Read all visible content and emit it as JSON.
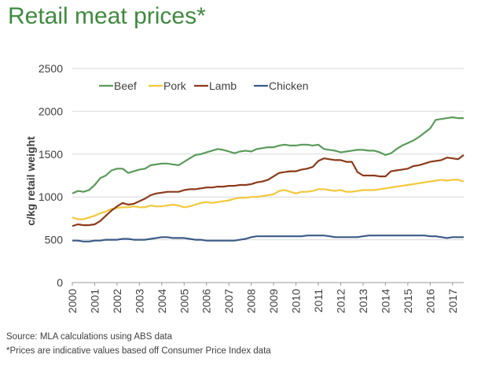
{
  "title": "Retail meat prices*",
  "notes": {
    "source": "Source: MLA calculations using ABS data",
    "footnote": "*Prices are indicative values based off Consumer Price Index data"
  },
  "chart_data": {
    "type": "line",
    "ylabel": "c/kg retail weight",
    "xlabel": "",
    "ylim": [
      0,
      2500
    ],
    "xlim": [
      2000,
      2017.5
    ],
    "yticks": [
      0,
      500,
      1000,
      1500,
      2000,
      2500
    ],
    "xticks": [
      "2000",
      "2001",
      "2002",
      "2003",
      "2004",
      "2005",
      "2006",
      "2007",
      "2008",
      "2009",
      "2010",
      "2011",
      "2012",
      "2013",
      "2014",
      "2015",
      "2016",
      "2017"
    ],
    "grid": "horizontal",
    "legend": "top-left",
    "x": [
      2000,
      2000.25,
      2000.5,
      2000.75,
      2001,
      2001.25,
      2001.5,
      2001.75,
      2002,
      2002.25,
      2002.5,
      2002.75,
      2003,
      2003.25,
      2003.5,
      2003.75,
      2004,
      2004.25,
      2004.5,
      2004.75,
      2005,
      2005.25,
      2005.5,
      2005.75,
      2006,
      2006.25,
      2006.5,
      2006.75,
      2007,
      2007.25,
      2007.5,
      2007.75,
      2008,
      2008.25,
      2008.5,
      2008.75,
      2009,
      2009.25,
      2009.5,
      2009.75,
      2010,
      2010.25,
      2010.5,
      2010.75,
      2011,
      2011.25,
      2011.5,
      2011.75,
      2012,
      2012.25,
      2012.5,
      2012.75,
      2013,
      2013.25,
      2013.5,
      2013.75,
      2014,
      2014.25,
      2014.5,
      2014.75,
      2015,
      2015.25,
      2015.5,
      2015.75,
      2016,
      2016.25,
      2016.5,
      2016.75,
      2017,
      2017.25,
      2017.5
    ],
    "series": [
      {
        "name": "Beef",
        "color": "#5a9a5a",
        "values": [
          1040,
          1070,
          1060,
          1080,
          1140,
          1220,
          1250,
          1310,
          1330,
          1330,
          1280,
          1300,
          1320,
          1330,
          1370,
          1380,
          1390,
          1390,
          1380,
          1370,
          1410,
          1450,
          1490,
          1500,
          1520,
          1540,
          1560,
          1550,
          1530,
          1510,
          1530,
          1540,
          1530,
          1560,
          1570,
          1580,
          1580,
          1600,
          1610,
          1600,
          1600,
          1610,
          1610,
          1600,
          1610,
          1560,
          1550,
          1540,
          1520,
          1530,
          1540,
          1550,
          1550,
          1540,
          1540,
          1520,
          1490,
          1510,
          1560,
          1600,
          1630,
          1660,
          1700,
          1750,
          1800,
          1900,
          1910,
          1920,
          1930,
          1920,
          1920
        ]
      },
      {
        "name": "Pork",
        "color": "#f2c83a",
        "values": [
          760,
          740,
          740,
          760,
          780,
          810,
          830,
          860,
          870,
          880,
          880,
          890,
          880,
          880,
          900,
          890,
          890,
          900,
          910,
          900,
          880,
          890,
          910,
          930,
          940,
          930,
          940,
          950,
          960,
          980,
          990,
          990,
          1000,
          1000,
          1010,
          1020,
          1030,
          1070,
          1080,
          1060,
          1040,
          1060,
          1060,
          1070,
          1090,
          1090,
          1080,
          1070,
          1080,
          1060,
          1060,
          1070,
          1080,
          1080,
          1080,
          1090,
          1100,
          1110,
          1120,
          1130,
          1140,
          1150,
          1160,
          1170,
          1180,
          1190,
          1200,
          1190,
          1200,
          1200,
          1180
        ]
      },
      {
        "name": "Lamb",
        "color": "#8b3a1a",
        "values": [
          660,
          680,
          670,
          670,
          680,
          720,
          780,
          840,
          890,
          930,
          910,
          920,
          950,
          980,
          1020,
          1040,
          1050,
          1060,
          1060,
          1060,
          1080,
          1090,
          1090,
          1100,
          1110,
          1110,
          1120,
          1120,
          1130,
          1130,
          1140,
          1140,
          1150,
          1170,
          1180,
          1200,
          1240,
          1280,
          1290,
          1300,
          1300,
          1320,
          1330,
          1350,
          1420,
          1450,
          1440,
          1430,
          1430,
          1410,
          1410,
          1290,
          1250,
          1250,
          1250,
          1240,
          1240,
          1300,
          1310,
          1320,
          1330,
          1360,
          1370,
          1390,
          1410,
          1420,
          1430,
          1460,
          1450,
          1440,
          1490
        ]
      },
      {
        "name": "Chicken",
        "color": "#3b5a86",
        "values": [
          490,
          490,
          480,
          480,
          490,
          490,
          500,
          500,
          500,
          510,
          510,
          500,
          500,
          500,
          510,
          520,
          530,
          530,
          520,
          520,
          520,
          510,
          500,
          500,
          490,
          490,
          490,
          490,
          490,
          490,
          500,
          510,
          530,
          540,
          540,
          540,
          540,
          540,
          540,
          540,
          540,
          540,
          550,
          550,
          550,
          550,
          540,
          530,
          530,
          530,
          530,
          530,
          540,
          550,
          550,
          550,
          550,
          550,
          550,
          550,
          550,
          550,
          550,
          550,
          540,
          540,
          530,
          520,
          530,
          530,
          530
        ]
      }
    ]
  }
}
